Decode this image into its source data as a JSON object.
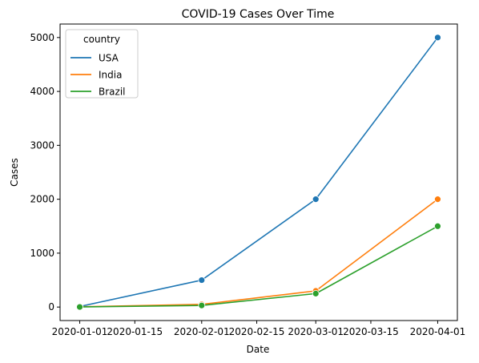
{
  "chart_data": {
    "type": "line",
    "title": "COVID-19 Cases Over Time",
    "xlabel": "Date",
    "ylabel": "Cases",
    "x": [
      "2020-01-01",
      "2020-02-01",
      "2020-03-01",
      "2020-04-01"
    ],
    "xlim": [
      "2019-12-27",
      "2020-04-06"
    ],
    "ylim": [
      -250,
      5250
    ],
    "xticks": [
      "2020-01-01",
      "2020-01-15",
      "2020-02-01",
      "2020-02-15",
      "2020-03-01",
      "2020-03-15",
      "2020-04-01"
    ],
    "yticks": [
      0,
      1000,
      2000,
      3000,
      4000,
      5000
    ],
    "grid": false,
    "legend": {
      "title": "country",
      "position": "top-left"
    },
    "series": [
      {
        "name": "USA",
        "color": "#1f77b4",
        "values": [
          10,
          500,
          2000,
          5000
        ]
      },
      {
        "name": "India",
        "color": "#ff7f0e",
        "values": [
          5,
          50,
          300,
          2000
        ]
      },
      {
        "name": "Brazil",
        "color": "#2ca02c",
        "values": [
          2,
          30,
          250,
          1500
        ]
      }
    ]
  }
}
